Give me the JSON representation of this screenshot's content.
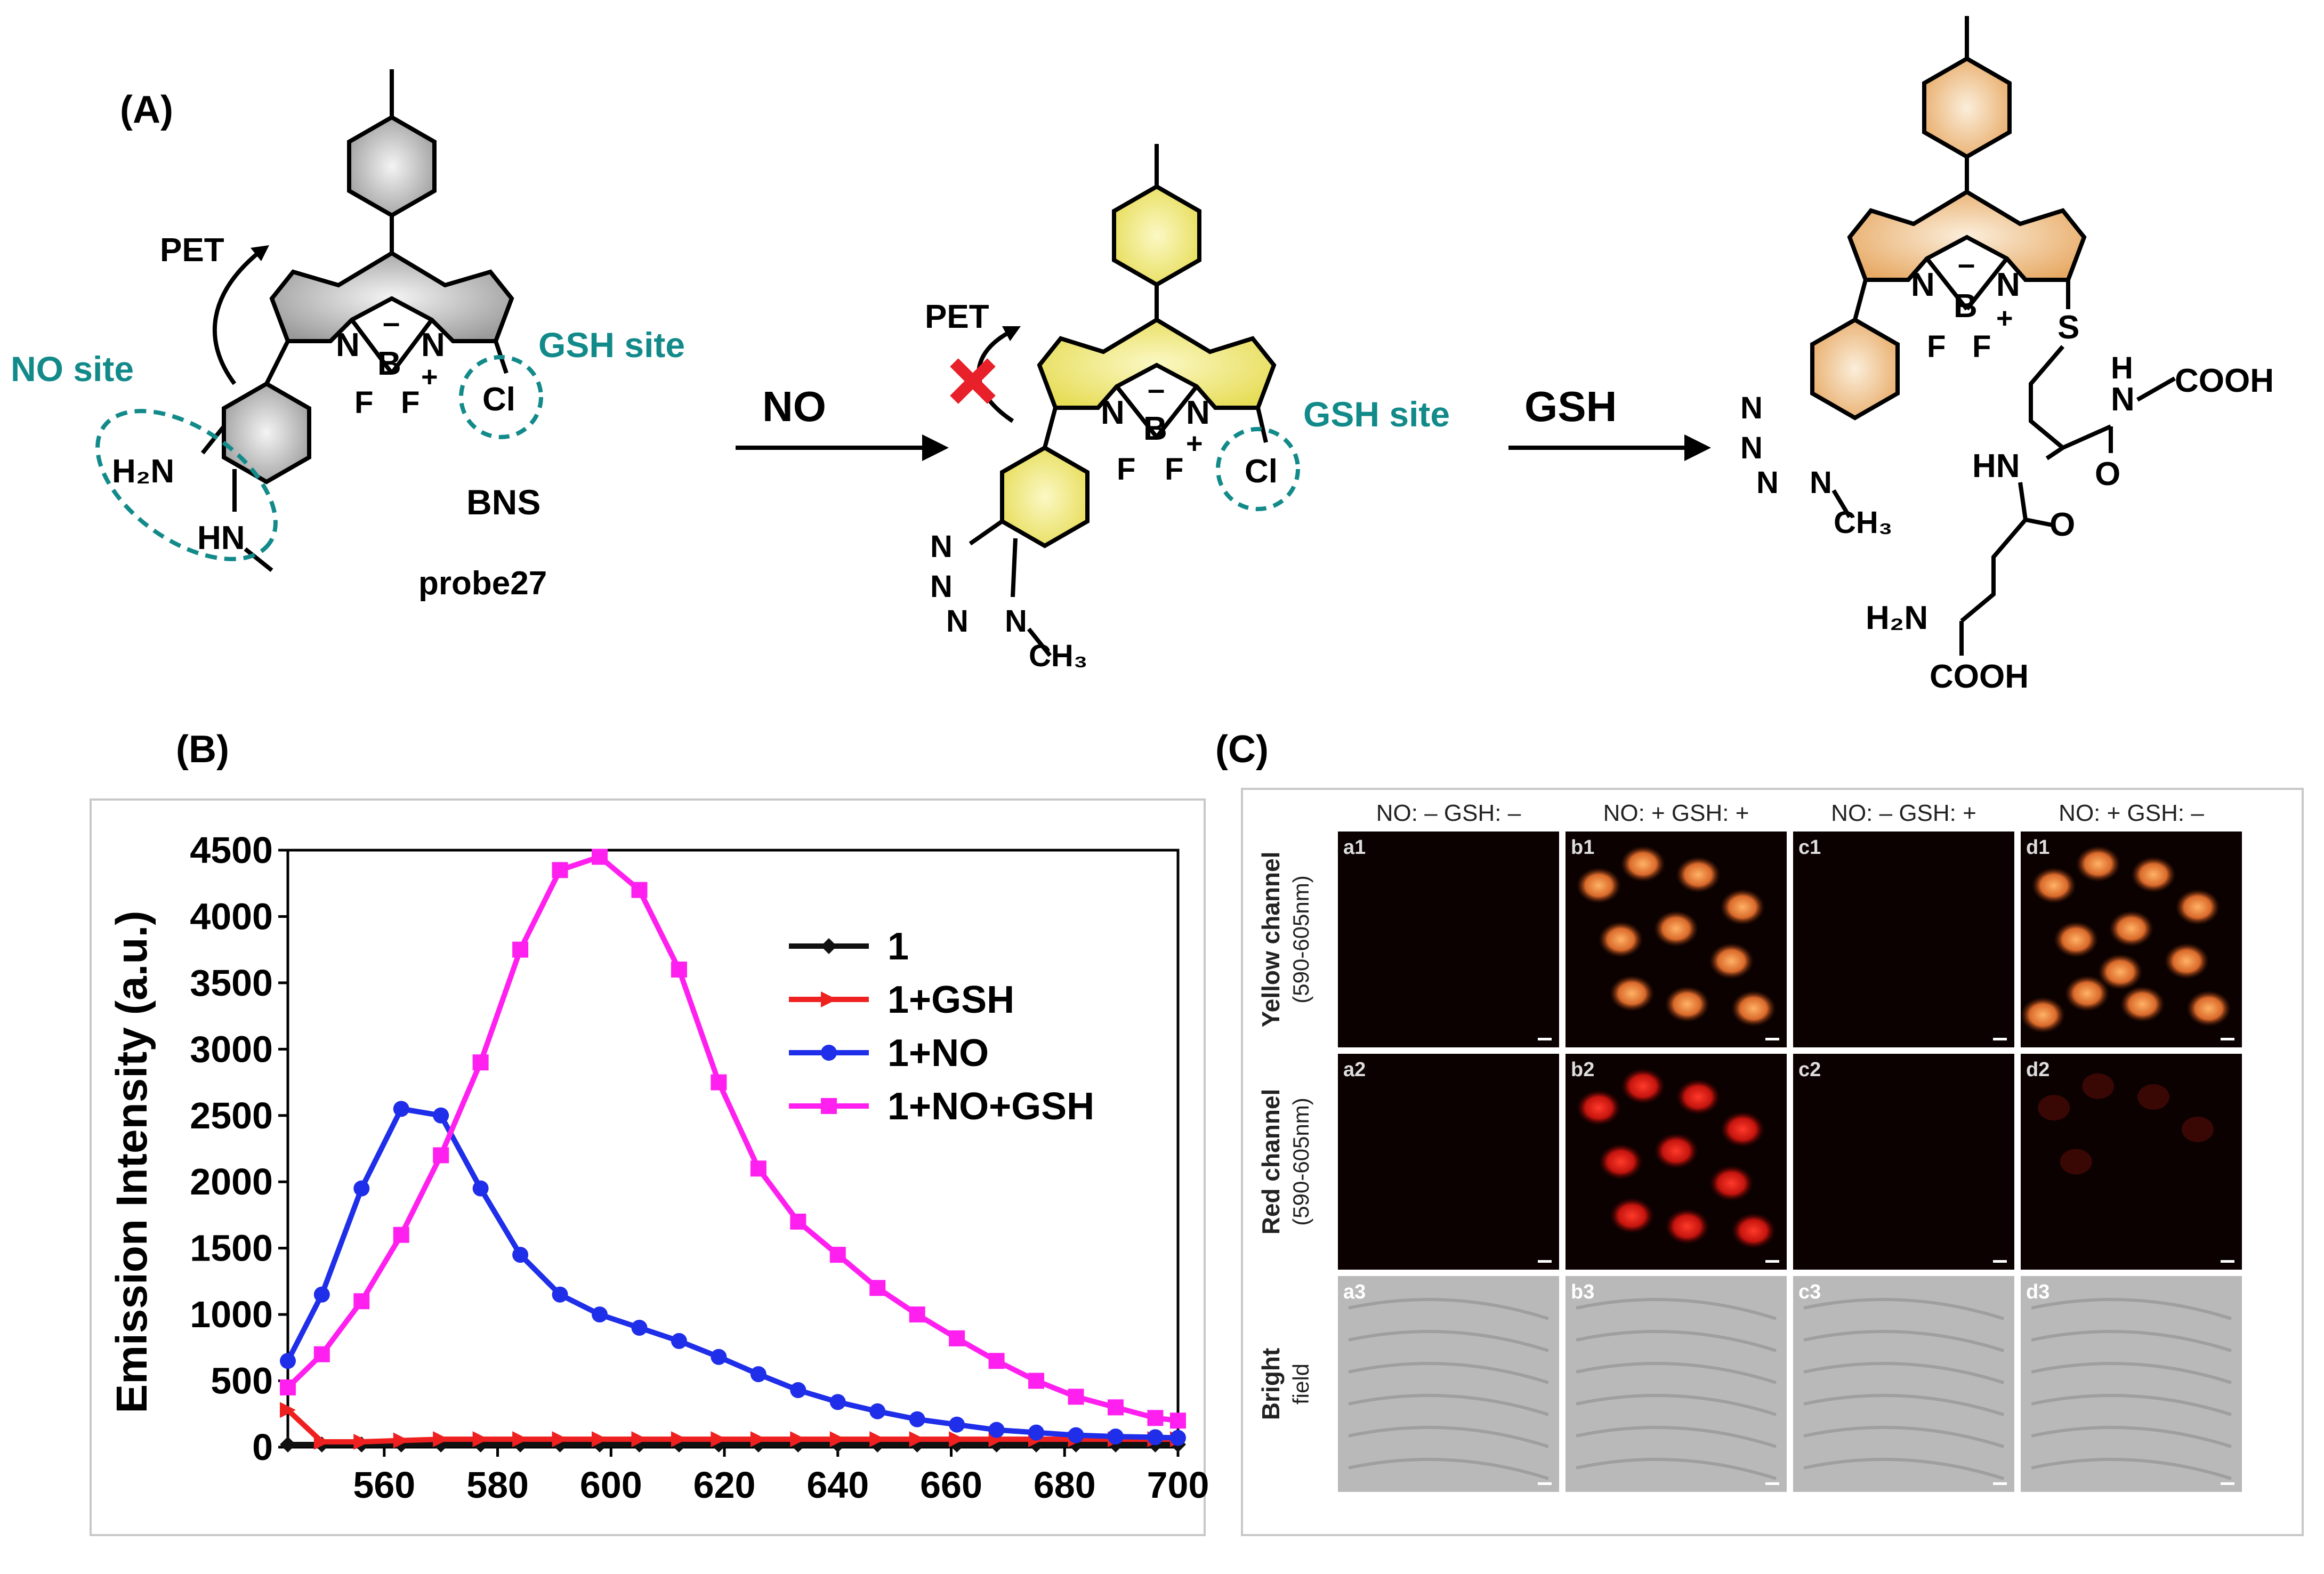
{
  "colors": {
    "teal": "#138a8a",
    "gray_ring": "#b8b8b8",
    "yellow_ring": "#f2ea86",
    "orange_ring": "#f0c28e",
    "red_x": "#e8202a",
    "series_1": "#111111",
    "series_gsh": "#ef2020",
    "series_no": "#1f2ee8",
    "series_nogsh": "#ff20f0"
  },
  "panel_a": {
    "label": "(A)",
    "pet_label": "PET",
    "pet_label2": "PET",
    "no_site": "NO site",
    "gsh_site": "GSH site",
    "gsh_site2": "GSH site",
    "probe_name": "BNS",
    "probe_number": "probe27",
    "arrow1": "NO",
    "arrow2": "GSH",
    "atoms": {
      "n": "N",
      "b": "B",
      "f": "F",
      "cl": "Cl",
      "minus": "–",
      "plus": "+",
      "h2n": "H₂N",
      "hn": "HN",
      "ch3": "CH₃",
      "s": "S",
      "o": "O",
      "h": "H",
      "cooh": "COOH",
      "n_h": "N",
      "hn2": "HN"
    },
    "icons": [
      "pet-arrow-icon",
      "blocked-x-icon",
      "reaction-arrow-icon"
    ]
  },
  "panel_b": {
    "label": "(B)"
  },
  "panel_c": {
    "label": "(C)",
    "column_headers": [
      "NO:  – GSH:  –",
      "NO:  + GSH:  +",
      "NO:  – GSH:  +",
      "NO:  + GSH:  –"
    ],
    "row_labels": [
      {
        "line1": "Yellow channel",
        "line2": "(590-605nm)"
      },
      {
        "line1": "Red channel",
        "line2": "(590-605nm)"
      },
      {
        "line1": "Bright",
        "line2": "field"
      }
    ],
    "tiles": [
      [
        "a1",
        "b1",
        "c1",
        "d1"
      ],
      [
        "a2",
        "b2",
        "c2",
        "d2"
      ],
      [
        "a3",
        "b3",
        "c3",
        "d3"
      ]
    ]
  },
  "chart_data": {
    "type": "line",
    "title": "",
    "xlabel": "",
    "ylabel": "Emission Intensity (a.u.)",
    "xlim": [
      543,
      700
    ],
    "ylim": [
      0,
      4500
    ],
    "xticks": [
      560,
      580,
      600,
      620,
      640,
      660,
      680,
      700
    ],
    "yticks": [
      0,
      500,
      1000,
      1500,
      2000,
      2500,
      3000,
      3500,
      4000,
      4500
    ],
    "legend_position": "top-right",
    "x": [
      543,
      549,
      556,
      563,
      570,
      577,
      584,
      591,
      598,
      605,
      612,
      619,
      626,
      633,
      640,
      647,
      654,
      661,
      668,
      675,
      682,
      689,
      696,
      700
    ],
    "series": [
      {
        "name": "1",
        "marker": "diamond",
        "values": [
          20,
          20,
          20,
          20,
          20,
          20,
          20,
          20,
          20,
          20,
          20,
          20,
          20,
          20,
          20,
          20,
          20,
          20,
          20,
          20,
          20,
          20,
          20,
          20
        ]
      },
      {
        "name": "1+GSH",
        "marker": "triangle",
        "values": [
          280,
          40,
          40,
          50,
          60,
          60,
          60,
          60,
          60,
          60,
          60,
          60,
          60,
          60,
          60,
          60,
          60,
          60,
          60,
          60,
          60,
          60,
          60,
          60
        ]
      },
      {
        "name": "1+NO",
        "marker": "circle",
        "values": [
          650,
          1150,
          1950,
          2550,
          2500,
          1950,
          1450,
          1150,
          1000,
          900,
          800,
          680,
          550,
          430,
          340,
          270,
          210,
          170,
          130,
          110,
          90,
          80,
          75,
          70
        ]
      },
      {
        "name": "1+NO+GSH",
        "marker": "square",
        "values": [
          450,
          700,
          1100,
          1600,
          2200,
          2900,
          3750,
          4350,
          4450,
          4200,
          3600,
          2750,
          2100,
          1700,
          1450,
          1200,
          1000,
          820,
          650,
          500,
          380,
          300,
          220,
          200
        ]
      }
    ]
  }
}
